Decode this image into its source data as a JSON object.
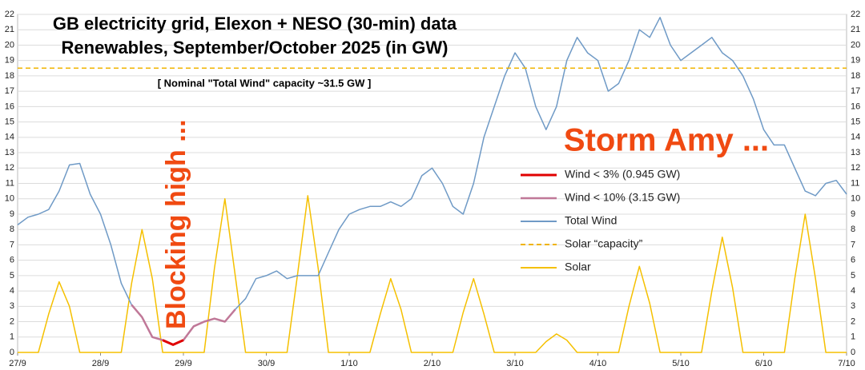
{
  "chart_data": {
    "type": "line",
    "title_lines": [
      "GB electricity grid, Elexon + NESO (30-min) data",
      "Renewables, September/October 2025 (in GW)"
    ],
    "annotations": {
      "capacity_note": "[ Nominal \"Total Wind\" capacity ~31.5 GW ]",
      "blocking": "Blocking high ...",
      "storm": "Storm Amy ..."
    },
    "x": [
      0,
      0.125,
      0.25,
      0.375,
      0.5,
      0.625,
      0.75,
      0.875,
      1,
      1.125,
      1.25,
      1.375,
      1.5,
      1.625,
      1.75,
      1.875,
      2,
      2.125,
      2.25,
      2.375,
      2.5,
      2.625,
      2.75,
      2.875,
      3,
      3.125,
      3.25,
      3.375,
      3.5,
      3.625,
      3.75,
      3.875,
      4,
      4.125,
      4.25,
      4.375,
      4.5,
      4.625,
      4.75,
      4.875,
      5,
      5.125,
      5.25,
      5.375,
      5.5,
      5.625,
      5.75,
      5.875,
      6,
      6.125,
      6.25,
      6.375,
      6.5,
      6.625,
      6.75,
      6.875,
      7,
      7.125,
      7.25,
      7.375,
      7.5,
      7.625,
      7.75,
      7.875,
      8,
      8.125,
      8.25,
      8.375,
      8.5,
      8.625,
      8.75,
      8.875,
      9,
      9.125,
      9.25,
      9.375,
      9.5,
      9.625,
      9.75,
      9.875,
      10
    ],
    "xlim": [
      0,
      10
    ],
    "xticks": [
      {
        "value": 0,
        "label": "27/9"
      },
      {
        "value": 1,
        "label": "28/9"
      },
      {
        "value": 2,
        "label": "29/9"
      },
      {
        "value": 3,
        "label": "30/9"
      },
      {
        "value": 4,
        "label": "1/10"
      },
      {
        "value": 5,
        "label": "2/10"
      },
      {
        "value": 6,
        "label": "3/10"
      },
      {
        "value": 7,
        "label": "4/10"
      },
      {
        "value": 8,
        "label": "5/10"
      },
      {
        "value": 9,
        "label": "6/10"
      },
      {
        "value": 10,
        "label": "7/10"
      }
    ],
    "ylim": [
      0,
      22
    ],
    "yticks": [
      0,
      1,
      2,
      3,
      4,
      5,
      6,
      7,
      8,
      9,
      10,
      11,
      12,
      13,
      14,
      15,
      16,
      17,
      18,
      19,
      20,
      21,
      22
    ],
    "grid": true,
    "series": [
      {
        "name": "Wind < 3% (0.945 GW)",
        "color": "#e00000",
        "width": 3,
        "values": [
          null,
          null,
          null,
          null,
          null,
          null,
          null,
          null,
          null,
          null,
          null,
          null,
          null,
          null,
          0.8,
          0.5,
          0.8,
          null,
          null,
          null,
          null,
          null,
          null,
          null,
          null,
          null,
          null,
          null,
          null,
          null,
          null,
          null,
          null,
          null,
          null,
          null,
          null,
          null,
          null,
          null,
          null,
          null,
          null,
          null,
          null,
          null,
          null,
          null,
          null,
          null,
          null,
          null,
          null,
          null,
          null,
          null,
          null,
          null,
          null,
          null,
          null,
          null,
          null,
          null,
          null,
          null,
          null,
          null,
          null,
          null,
          null,
          null,
          null,
          null,
          null,
          null,
          null,
          null,
          null,
          null,
          null
        ]
      },
      {
        "name": "Wind < 10% (3.15 GW)",
        "color": "#c07898",
        "width": 2.5,
        "values": [
          null,
          null,
          null,
          null,
          null,
          null,
          null,
          null,
          null,
          null,
          null,
          3.1,
          2.3,
          1.0,
          0.8,
          0.5,
          0.8,
          1.7,
          2.0,
          2.2,
          2.0,
          2.8,
          null,
          null,
          null,
          null,
          null,
          null,
          null,
          null,
          null,
          null,
          null,
          null,
          null,
          null,
          null,
          null,
          null,
          null,
          null,
          null,
          null,
          null,
          null,
          null,
          null,
          null,
          null,
          null,
          null,
          null,
          null,
          null,
          null,
          null,
          null,
          null,
          null,
          null,
          null,
          null,
          null,
          null,
          null,
          null,
          null,
          null,
          null,
          null,
          null,
          null,
          null,
          null,
          null,
          null,
          null,
          null,
          null,
          null,
          null
        ]
      },
      {
        "name": "Total Wind",
        "color": "#6f9ac6",
        "width": 1.5,
        "values": [
          8.3,
          8.8,
          9.0,
          9.3,
          10.5,
          12.2,
          12.3,
          10.3,
          9.0,
          7.0,
          4.5,
          3.1,
          2.3,
          1.0,
          0.8,
          0.5,
          0.8,
          1.7,
          2.0,
          2.2,
          2.0,
          2.8,
          3.5,
          4.8,
          5.0,
          5.3,
          4.8,
          5.0,
          5.0,
          5.0,
          6.5,
          8.0,
          9.0,
          9.3,
          9.5,
          9.5,
          9.8,
          9.5,
          10.0,
          11.5,
          12.0,
          11.0,
          9.5,
          9.0,
          11.0,
          14.0,
          16.0,
          18.0,
          19.5,
          18.5,
          16.0,
          14.5,
          16.0,
          19.0,
          20.5,
          19.5,
          19.0,
          17.0,
          17.5,
          19.0,
          21.0,
          20.5,
          21.8,
          20.0,
          19.0,
          19.5,
          20.0,
          20.5,
          19.5,
          19.0,
          18.0,
          16.5,
          14.5,
          13.5,
          13.5,
          12.0,
          10.5,
          10.2,
          11.0,
          11.2,
          10.3
        ]
      },
      {
        "name": "Solar “capacity”",
        "color": "#f0b400",
        "width": 1.5,
        "dashed": true,
        "value": 18.5
      },
      {
        "name": "Solar",
        "color": "#f5c000",
        "width": 1.5,
        "values": [
          0,
          0,
          0,
          2.5,
          4.6,
          3.0,
          0,
          0,
          0,
          0,
          0,
          4.5,
          8.0,
          4.8,
          0,
          0,
          0,
          0,
          0,
          5.5,
          10.0,
          5.0,
          0,
          0,
          0,
          0,
          0,
          5.0,
          10.2,
          5.5,
          0,
          0,
          0,
          0,
          0,
          2.5,
          4.8,
          2.8,
          0,
          0,
          0,
          0,
          0,
          2.6,
          4.8,
          2.5,
          0,
          0,
          0,
          0,
          0,
          0.7,
          1.2,
          0.8,
          0,
          0,
          0,
          0,
          0,
          3.0,
          5.6,
          3.2,
          0,
          0,
          0,
          0,
          0,
          4.0,
          7.5,
          4.2,
          0,
          0,
          0,
          0,
          0,
          4.8,
          9.0,
          4.8,
          0,
          0,
          0
        ]
      }
    ]
  }
}
